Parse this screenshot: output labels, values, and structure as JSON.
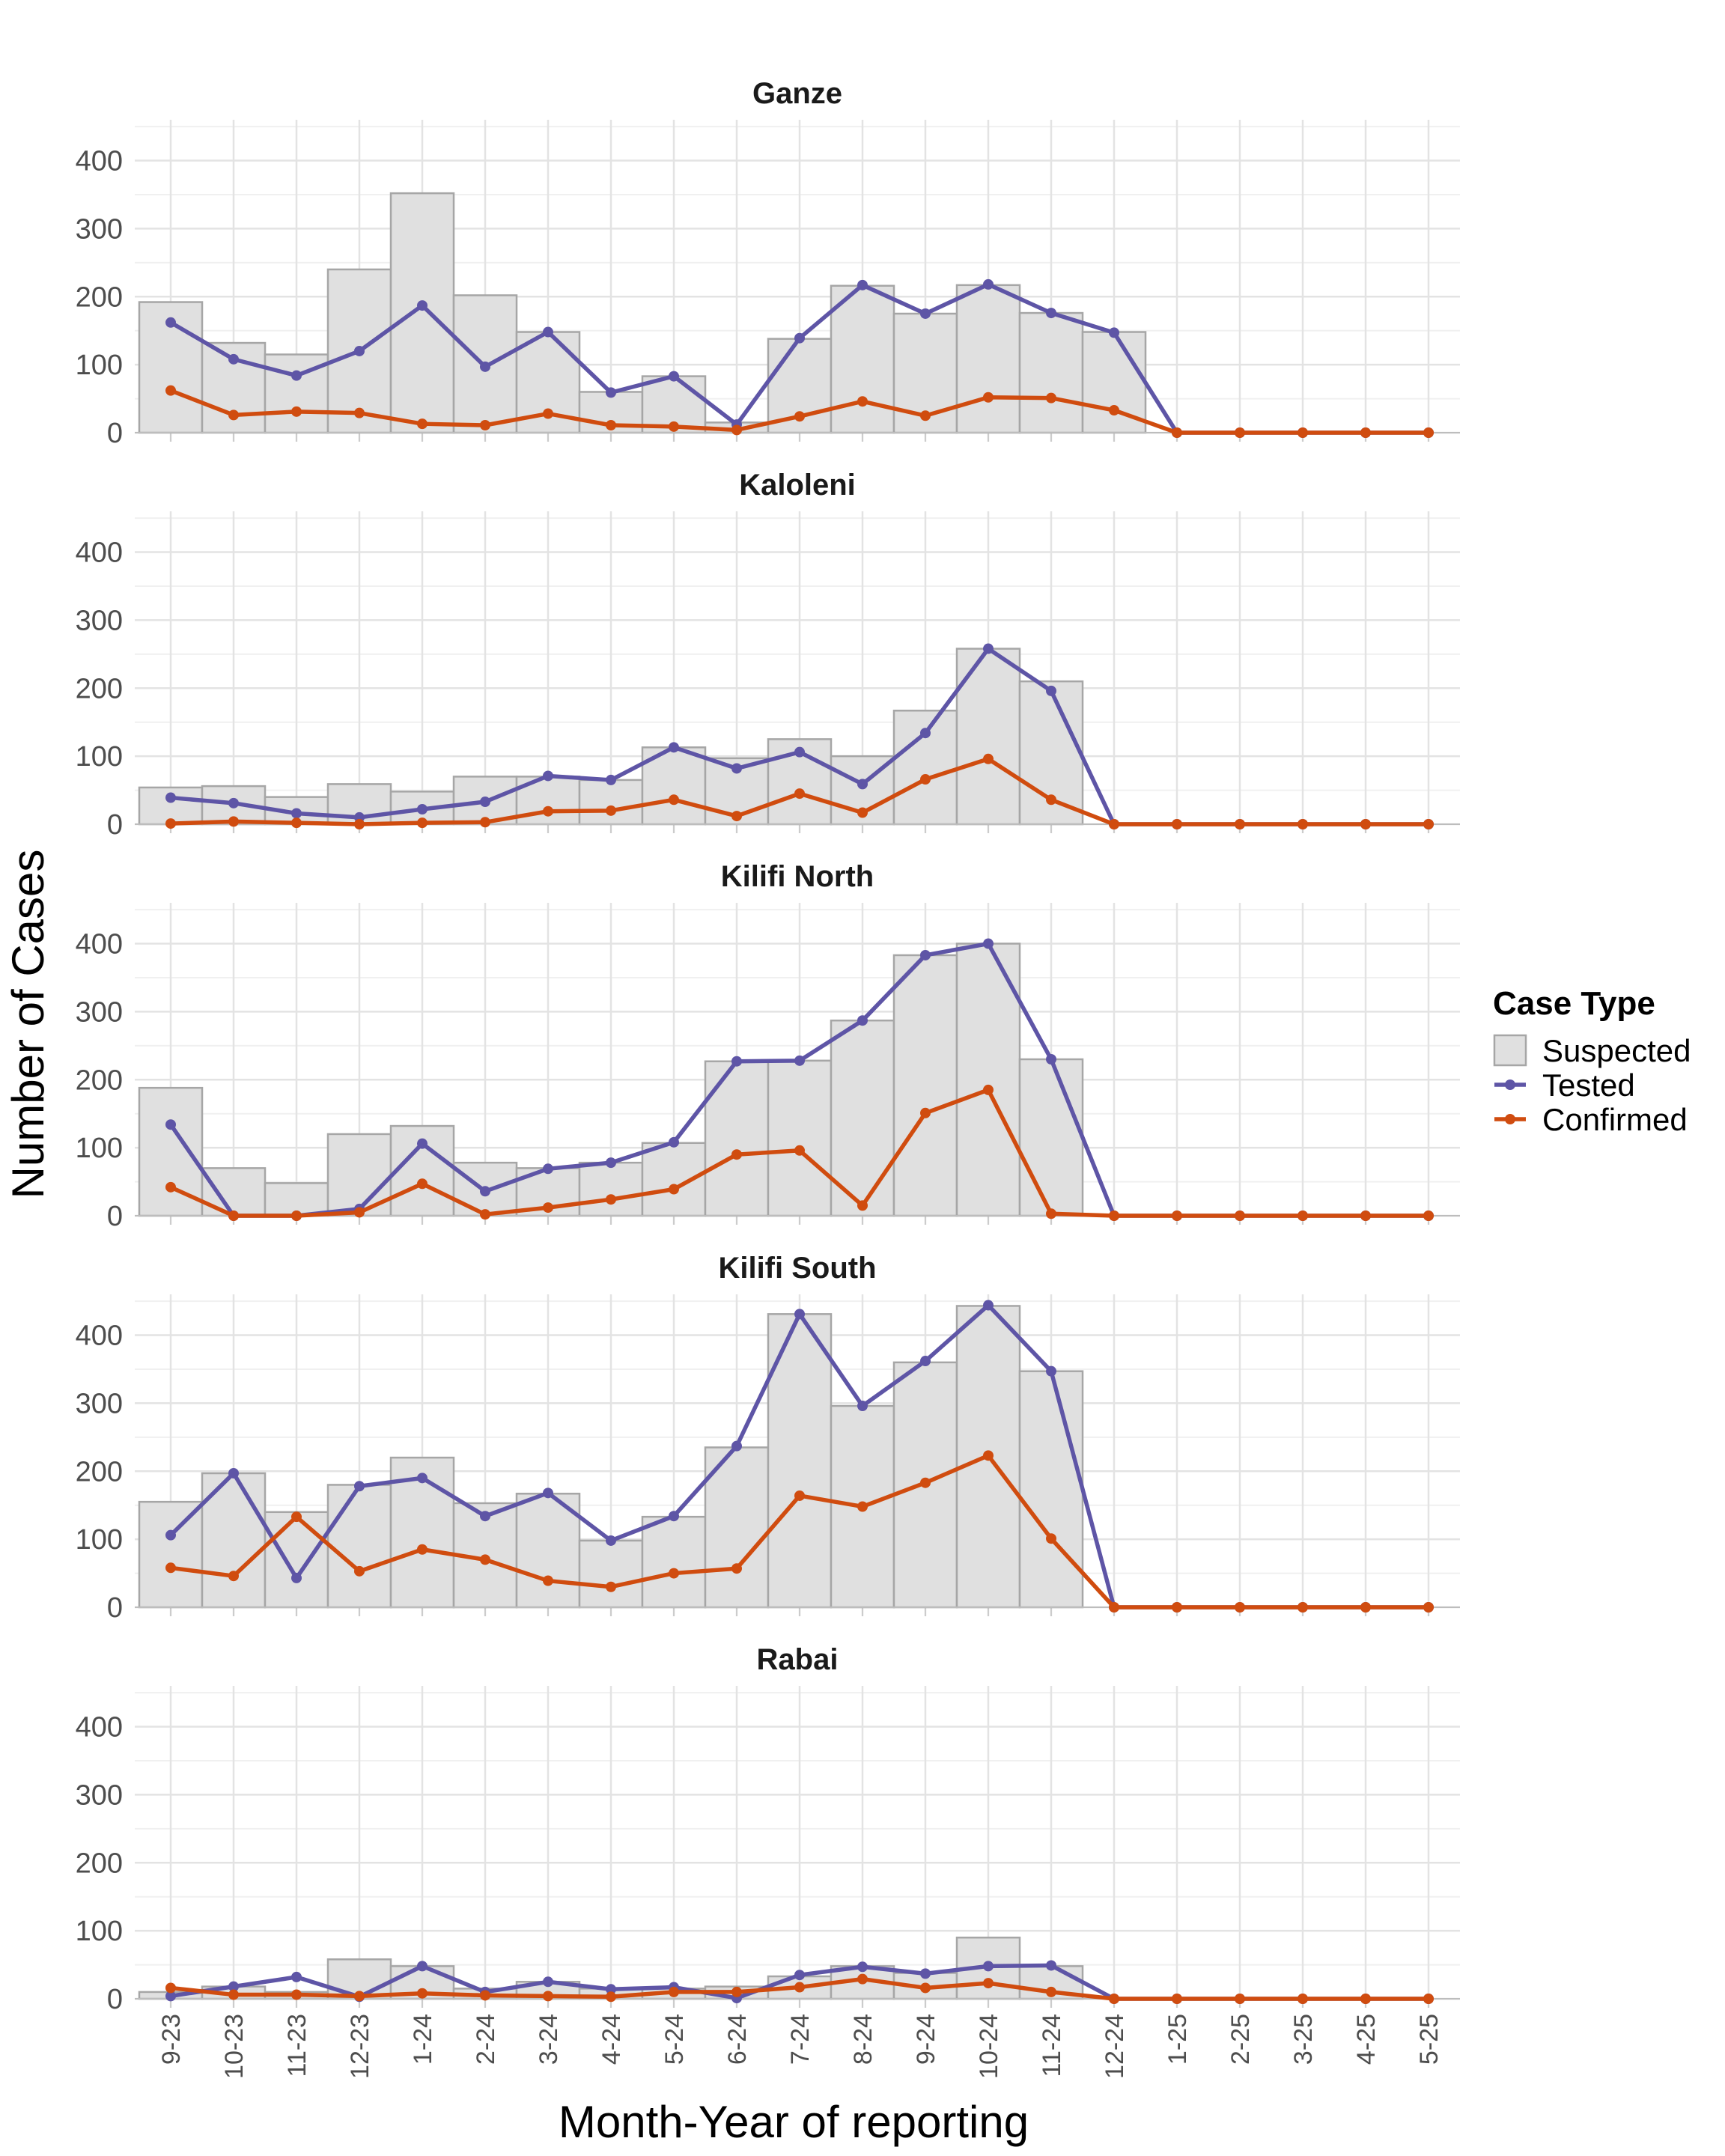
{
  "chart_data": {
    "type": "bar+line (faceted)",
    "xlabel": "Month-Year of reporting",
    "ylabel": "Number of Cases",
    "ylim": [
      0,
      460
    ],
    "yticks": [
      0,
      100,
      200,
      300,
      400
    ],
    "grid": true,
    "legend": {
      "title": "Case Type",
      "placement": "right",
      "items": [
        {
          "name": "Suspected",
          "color": "#e0e0e0",
          "stroke": "#a6a6a6",
          "shape": "box"
        },
        {
          "name": "Tested",
          "color": "#5e55a6",
          "shape": "line-point"
        },
        {
          "name": "Confirmed",
          "color": "#d04c0f",
          "shape": "line-point"
        }
      ]
    },
    "categories": [
      "9-23",
      "10-23",
      "11-23",
      "12-23",
      "1-24",
      "2-24",
      "3-24",
      "4-24",
      "5-24",
      "6-24",
      "7-24",
      "8-24",
      "9-24",
      "10-24",
      "11-24",
      "12-24",
      "1-25",
      "2-25",
      "3-25",
      "4-25",
      "5-25"
    ],
    "panels": [
      {
        "title": "Ganze",
        "suspected": [
          192,
          132,
          115,
          240,
          352,
          202,
          148,
          60,
          83,
          15,
          138,
          216,
          175,
          217,
          176,
          148,
          0,
          0,
          0,
          0,
          0
        ],
        "tested": [
          162,
          108,
          84,
          120,
          187,
          97,
          148,
          59,
          83,
          12,
          139,
          217,
          175,
          218,
          176,
          147,
          0,
          0,
          0,
          0,
          0
        ],
        "confirmed": [
          62,
          26,
          31,
          29,
          13,
          11,
          28,
          11,
          9,
          4,
          24,
          46,
          25,
          52,
          51,
          33,
          0,
          0,
          0,
          0,
          0
        ]
      },
      {
        "title": "Kaloleni",
        "suspected": [
          54,
          56,
          40,
          59,
          48,
          70,
          70,
          65,
          113,
          97,
          125,
          100,
          167,
          258,
          210,
          0,
          0,
          0,
          0,
          0,
          0
        ],
        "tested": [
          39,
          31,
          16,
          10,
          22,
          33,
          71,
          65,
          113,
          82,
          106,
          59,
          134,
          258,
          196,
          0,
          0,
          0,
          0,
          0,
          0
        ],
        "confirmed": [
          1,
          4,
          2,
          0,
          2,
          3,
          19,
          20,
          36,
          12,
          45,
          17,
          66,
          96,
          36,
          0,
          0,
          0,
          0,
          0,
          0
        ]
      },
      {
        "title": "Kilifi North",
        "suspected": [
          188,
          70,
          48,
          120,
          132,
          78,
          70,
          78,
          107,
          227,
          228,
          287,
          383,
          400,
          230,
          0,
          0,
          0,
          0,
          0,
          0
        ],
        "tested": [
          134,
          0,
          0,
          10,
          106,
          36,
          69,
          78,
          108,
          227,
          228,
          287,
          383,
          400,
          230,
          0,
          0,
          0,
          0,
          0,
          0
        ],
        "confirmed": [
          42,
          0,
          0,
          5,
          47,
          2,
          12,
          24,
          39,
          90,
          96,
          15,
          151,
          185,
          3,
          0,
          0,
          0,
          0,
          0,
          0
        ]
      },
      {
        "title": "Kilifi South",
        "suspected": [
          155,
          197,
          140,
          180,
          220,
          153,
          167,
          98,
          133,
          235,
          431,
          296,
          360,
          443,
          347,
          0,
          0,
          0,
          0,
          0,
          0
        ],
        "tested": [
          106,
          197,
          43,
          178,
          190,
          134,
          168,
          98,
          134,
          237,
          431,
          296,
          362,
          444,
          347,
          0,
          0,
          0,
          0,
          0,
          0
        ],
        "confirmed": [
          58,
          46,
          133,
          53,
          85,
          70,
          39,
          30,
          50,
          57,
          164,
          148,
          183,
          223,
          101,
          0,
          0,
          0,
          0,
          0,
          0
        ]
      },
      {
        "title": "Rabai",
        "suspected": [
          10,
          18,
          10,
          58,
          48,
          15,
          25,
          15,
          15,
          18,
          33,
          48,
          38,
          90,
          48,
          0,
          0,
          0,
          0,
          0,
          0
        ],
        "tested": [
          4,
          18,
          32,
          3,
          48,
          10,
          25,
          14,
          17,
          1,
          35,
          47,
          37,
          48,
          49,
          0,
          0,
          0,
          0,
          0,
          0
        ],
        "confirmed": [
          16,
          6,
          6,
          4,
          8,
          5,
          4,
          3,
          10,
          10,
          17,
          29,
          16,
          23,
          10,
          0,
          0,
          0,
          0,
          0,
          0
        ]
      }
    ]
  }
}
